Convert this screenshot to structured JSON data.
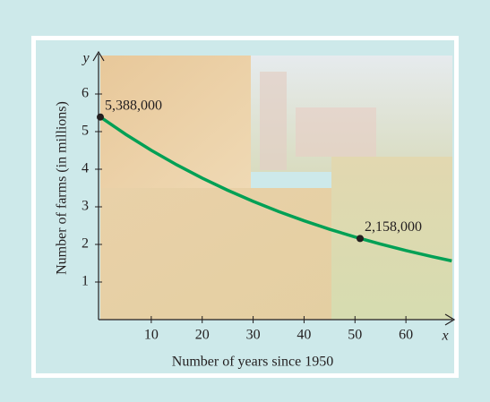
{
  "chart_data": {
    "type": "line",
    "x_label": "Number of years since 1950",
    "y_label": "Number of farms (in millions)",
    "x_axis_letter": "x",
    "y_axis_letter": "y",
    "x": [
      0,
      5,
      10,
      15,
      20,
      25,
      30,
      35,
      40,
      45,
      50,
      55,
      60,
      65,
      69
    ],
    "series": [
      {
        "color": "#00a055",
        "values": [
          5.388,
          4.926,
          4.503,
          4.117,
          3.764,
          3.441,
          3.146,
          2.876,
          2.63,
          2.404,
          2.198,
          2.01,
          1.837,
          1.68,
          1.562
        ]
      }
    ],
    "points": {
      "x": [
        0,
        51
      ],
      "values": [
        5.388,
        2.158
      ],
      "value_labels": [
        "5,388,000",
        "2,158,000"
      ],
      "color": "#231f20"
    },
    "xlim": [
      0,
      70
    ],
    "ylim": [
      0,
      7
    ],
    "xticks": [
      10,
      20,
      30,
      40,
      50,
      60
    ],
    "yticks": [
      1,
      2,
      3,
      4,
      5,
      6
    ]
  }
}
